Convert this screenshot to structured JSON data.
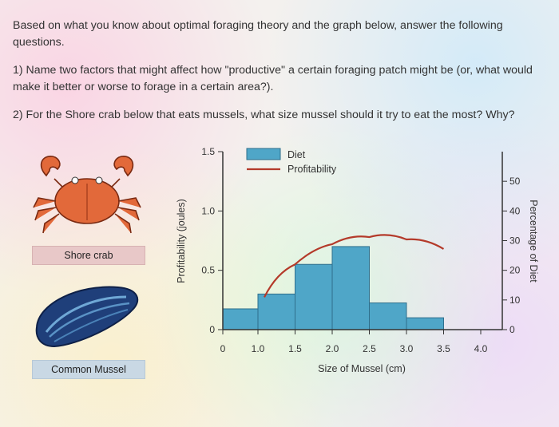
{
  "intro": "Based on what you know about optimal foraging theory and the graph below, answer the following questions.",
  "q1": "1) Name two factors that might affect how \"productive\" a certain foraging patch might be (or, what would make it better or worse to forage in a certain area?).",
  "q2": "2) For the Shore crab below that eats mussels, what size mussel should it try to eat the most? Why?",
  "crab_label": "Shore crab",
  "mussel_label": "Common Mussel",
  "colors": {
    "bar": "#4fa6c8",
    "bar_edge": "#2f6f8c",
    "curve": "#b43a2a",
    "crab": "#e2693a",
    "mussel": "#1f3f7a"
  },
  "chart_data": {
    "type": "bar",
    "xlabel": "Size of Mussel (cm)",
    "ylabel_left": "Profitability (joules)",
    "ylabel_right": "Percentage of Diet",
    "x_ticks": [
      "0",
      "1.0",
      "1.5",
      "2.0",
      "2.5",
      "3.0",
      "3.5",
      "4.0"
    ],
    "y_left_ticks": [
      "0",
      "0.5",
      "1.0",
      "1.5"
    ],
    "y_right_ticks": [
      "0",
      "10",
      "20",
      "30",
      "40",
      "50"
    ],
    "ylim_left": [
      0,
      1.5
    ],
    "ylim_right": [
      0,
      60
    ],
    "legend": [
      "Diet",
      "Profitability"
    ],
    "diet": {
      "bin_edges": [
        0,
        1.0,
        1.5,
        2.0,
        2.5,
        3.0,
        3.5
      ],
      "values": [
        7,
        12,
        22,
        28,
        9,
        4
      ]
    },
    "profitability": {
      "x": [
        1.0,
        1.5,
        2.0,
        2.5,
        3.0,
        3.5
      ],
      "y": [
        0.3,
        0.55,
        0.72,
        0.78,
        0.76,
        0.68
      ]
    }
  }
}
